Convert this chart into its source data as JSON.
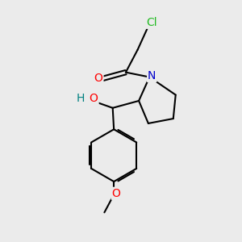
{
  "background_color": "#ebebeb",
  "bond_color": "#000000",
  "bond_width": 1.5,
  "atoms": {
    "Cl": {
      "color": "#22bb22",
      "fontsize": 10
    },
    "O_carbonyl": {
      "color": "#ff0000",
      "fontsize": 10
    },
    "N": {
      "color": "#0000cc",
      "fontsize": 10
    },
    "O_hydroxy": {
      "color": "#ff0000",
      "fontsize": 10
    },
    "H": {
      "color": "#008080",
      "fontsize": 10
    },
    "O_methoxy": {
      "color": "#ff0000",
      "fontsize": 10
    }
  },
  "figsize": [
    3.0,
    3.0
  ],
  "dpi": 100,
  "xlim": [
    0,
    10
  ],
  "ylim": [
    0,
    10
  ]
}
